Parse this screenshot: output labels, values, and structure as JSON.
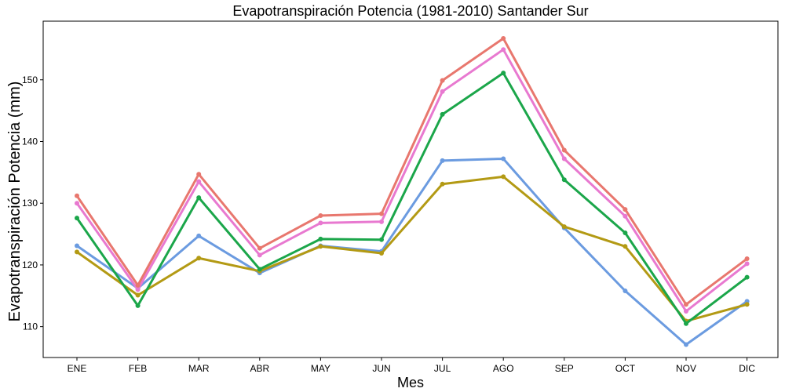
{
  "chart_data": {
    "type": "line",
    "title": "Evapotranspiración Potencia (1981-2010)  Santander Sur",
    "xlabel": "Mes",
    "ylabel": "Evapotranspiración Potencia  (mm)",
    "categories": [
      "ENE",
      "FEB",
      "MAR",
      "ABR",
      "MAY",
      "JUN",
      "JUL",
      "AGO",
      "SEP",
      "OCT",
      "NOV",
      "DIC"
    ],
    "ylim": [
      105,
      159.5
    ],
    "yticks": [
      110,
      120,
      130,
      140,
      150
    ],
    "grid": false,
    "legend": "none",
    "series": [
      {
        "color": "#6b9be0",
        "values": [
          123.1,
          116.2,
          124.7,
          118.7,
          123.1,
          122.2,
          136.9,
          137.2,
          126.0,
          115.8,
          107.1,
          114.1
        ]
      },
      {
        "color": "#b39a14",
        "values": [
          122.1,
          115.1,
          121.1,
          119.0,
          123.0,
          121.9,
          133.1,
          134.3,
          126.2,
          123.0,
          110.9,
          113.6
        ]
      },
      {
        "color": "#1ba64a",
        "values": [
          127.6,
          113.4,
          130.9,
          119.3,
          124.2,
          124.1,
          144.4,
          151.1,
          133.8,
          125.2,
          110.5,
          118.0
        ]
      },
      {
        "color": "#e879d0",
        "values": [
          130.0,
          116.0,
          133.5,
          121.6,
          126.8,
          127.0,
          148.1,
          154.9,
          137.2,
          127.9,
          112.5,
          120.2
        ]
      },
      {
        "color": "#e8776e",
        "values": [
          131.2,
          116.7,
          134.7,
          122.7,
          128.0,
          128.3,
          149.9,
          156.7,
          138.6,
          129.0,
          113.6,
          121.0
        ]
      }
    ]
  }
}
